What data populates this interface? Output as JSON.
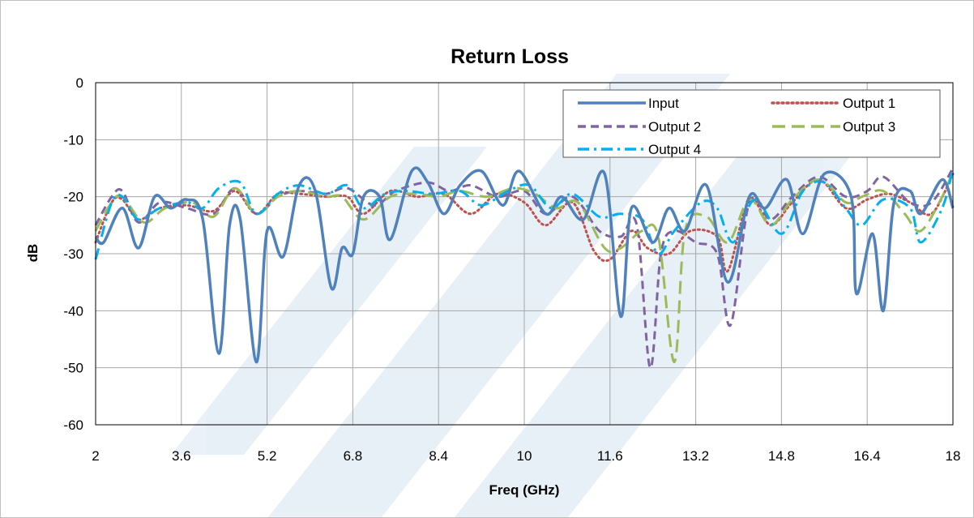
{
  "chart_data": {
    "type": "line",
    "title": "Return Loss",
    "xlabel": "Freq (GHz)",
    "ylabel": "dB",
    "xlim": [
      2,
      18
    ],
    "ylim": [
      -60,
      0
    ],
    "xticks": [
      "2",
      "3.6",
      "5.2",
      "6.8",
      "8.4",
      "10",
      "11.6",
      "13.2",
      "14.8",
      "16.4",
      "18"
    ],
    "yticks": [
      "0",
      "-10",
      "-20",
      "-30",
      "-40",
      "-50",
      "-60"
    ],
    "grid": true,
    "legend_position": "top-right",
    "series": [
      {
        "name": "Input",
        "color": "#4f81bd",
        "style": "solid",
        "points": [
          [
            2,
            -27
          ],
          [
            2.15,
            -28
          ],
          [
            2.5,
            -22
          ],
          [
            2.8,
            -29
          ],
          [
            3.1,
            -20
          ],
          [
            3.4,
            -22
          ],
          [
            3.7,
            -20.5
          ],
          [
            4,
            -24
          ],
          [
            4.3,
            -47.5
          ],
          [
            4.5,
            -25
          ],
          [
            4.7,
            -24
          ],
          [
            5.0,
            -49
          ],
          [
            5.2,
            -26
          ],
          [
            5.5,
            -30.5
          ],
          [
            5.8,
            -18
          ],
          [
            6.1,
            -19
          ],
          [
            6.4,
            -36
          ],
          [
            6.6,
            -29
          ],
          [
            6.8,
            -30
          ],
          [
            7.0,
            -20
          ],
          [
            7.3,
            -20
          ],
          [
            7.5,
            -27.5
          ],
          [
            7.9,
            -15.5
          ],
          [
            8.2,
            -17.5
          ],
          [
            8.5,
            -23
          ],
          [
            8.8,
            -18
          ],
          [
            9.2,
            -15.5
          ],
          [
            9.6,
            -21.5
          ],
          [
            9.9,
            -15.5
          ],
          [
            10.4,
            -23
          ],
          [
            10.7,
            -20
          ],
          [
            11.1,
            -24
          ],
          [
            11.5,
            -16
          ],
          [
            11.8,
            -41
          ],
          [
            12.0,
            -22
          ],
          [
            12.4,
            -28
          ],
          [
            12.7,
            -22
          ],
          [
            13.0,
            -26
          ],
          [
            13.4,
            -18
          ],
          [
            13.8,
            -35
          ],
          [
            14.2,
            -20
          ],
          [
            14.5,
            -22
          ],
          [
            14.9,
            -17
          ],
          [
            15.2,
            -26.5
          ],
          [
            15.6,
            -16
          ],
          [
            16.1,
            -20
          ],
          [
            16.2,
            -37
          ],
          [
            16.5,
            -26.5
          ],
          [
            16.7,
            -40
          ],
          [
            16.9,
            -21
          ],
          [
            17.2,
            -19
          ],
          [
            17.4,
            -23
          ],
          [
            17.8,
            -17
          ],
          [
            18,
            -22
          ]
        ]
      },
      {
        "name": "Output 1",
        "color": "#c0504d",
        "style": "dotted",
        "points": [
          [
            2,
            -28
          ],
          [
            2.3,
            -21
          ],
          [
            2.5,
            -20.5
          ],
          [
            2.8,
            -24
          ],
          [
            3.2,
            -22
          ],
          [
            3.7,
            -21.5
          ],
          [
            4.2,
            -22.5
          ],
          [
            4.6,
            -19
          ],
          [
            5.0,
            -23
          ],
          [
            5.4,
            -19.5
          ],
          [
            5.8,
            -19.5
          ],
          [
            6.3,
            -20
          ],
          [
            6.7,
            -20
          ],
          [
            7.0,
            -23
          ],
          [
            7.5,
            -19
          ],
          [
            8.0,
            -20
          ],
          [
            8.5,
            -19.5
          ],
          [
            9.0,
            -23
          ],
          [
            9.5,
            -19.5
          ],
          [
            10.0,
            -21
          ],
          [
            10.4,
            -25
          ],
          [
            10.9,
            -21
          ],
          [
            11.3,
            -29.5
          ],
          [
            11.6,
            -31
          ],
          [
            12.0,
            -26
          ],
          [
            12.3,
            -29
          ],
          [
            12.7,
            -30
          ],
          [
            13.1,
            -26
          ],
          [
            13.6,
            -27
          ],
          [
            13.8,
            -33
          ],
          [
            14.2,
            -20.5
          ],
          [
            14.6,
            -25
          ],
          [
            15.0,
            -21
          ],
          [
            15.5,
            -17
          ],
          [
            16.0,
            -22
          ],
          [
            16.4,
            -20.5
          ],
          [
            16.8,
            -19.5
          ],
          [
            17.2,
            -21
          ],
          [
            17.6,
            -23
          ],
          [
            18,
            -16
          ]
        ]
      },
      {
        "name": "Output 2",
        "color": "#8064a2",
        "style": "dashed",
        "points": [
          [
            2,
            -25
          ],
          [
            2.3,
            -20
          ],
          [
            2.5,
            -19
          ],
          [
            2.8,
            -24.5
          ],
          [
            3.2,
            -21
          ],
          [
            3.7,
            -22
          ],
          [
            4.2,
            -23
          ],
          [
            4.6,
            -18.5
          ],
          [
            5.0,
            -23
          ],
          [
            5.4,
            -20
          ],
          [
            5.8,
            -19
          ],
          [
            6.3,
            -19.5
          ],
          [
            6.7,
            -18.5
          ],
          [
            7.2,
            -21.5
          ],
          [
            7.6,
            -19
          ],
          [
            8.2,
            -17.5
          ],
          [
            8.6,
            -19
          ],
          [
            9.0,
            -18
          ],
          [
            9.5,
            -20
          ],
          [
            10.0,
            -19
          ],
          [
            10.4,
            -23
          ],
          [
            10.9,
            -20
          ],
          [
            11.4,
            -26
          ],
          [
            11.8,
            -27
          ],
          [
            12.1,
            -25
          ],
          [
            12.35,
            -50
          ],
          [
            12.55,
            -30
          ],
          [
            12.8,
            -26
          ],
          [
            13.2,
            -28
          ],
          [
            13.6,
            -30
          ],
          [
            13.85,
            -42.5
          ],
          [
            14.2,
            -21
          ],
          [
            14.6,
            -24
          ],
          [
            15.0,
            -20
          ],
          [
            15.5,
            -16.5
          ],
          [
            16.0,
            -20
          ],
          [
            16.4,
            -19
          ],
          [
            16.7,
            -16.5
          ],
          [
            17.2,
            -21
          ],
          [
            17.6,
            -21
          ],
          [
            18,
            -15
          ]
        ]
      },
      {
        "name": "Output 3",
        "color": "#9bbb59",
        "style": "longdash",
        "points": [
          [
            2,
            -26
          ],
          [
            2.3,
            -21
          ],
          [
            2.5,
            -20
          ],
          [
            2.9,
            -24.5
          ],
          [
            3.3,
            -22
          ],
          [
            3.8,
            -21
          ],
          [
            4.2,
            -23.5
          ],
          [
            4.6,
            -18.5
          ],
          [
            5.0,
            -23
          ],
          [
            5.4,
            -20
          ],
          [
            5.8,
            -19
          ],
          [
            6.3,
            -20
          ],
          [
            6.6,
            -20
          ],
          [
            7.0,
            -24
          ],
          [
            7.5,
            -20
          ],
          [
            8.0,
            -19.5
          ],
          [
            8.4,
            -20
          ],
          [
            8.8,
            -19
          ],
          [
            9.3,
            -20
          ],
          [
            9.8,
            -18.5
          ],
          [
            10.2,
            -19.5
          ],
          [
            10.6,
            -22
          ],
          [
            11.0,
            -21
          ],
          [
            11.5,
            -29
          ],
          [
            11.8,
            -29
          ],
          [
            12.2,
            -26
          ],
          [
            12.5,
            -27
          ],
          [
            12.8,
            -49
          ],
          [
            13.0,
            -26
          ],
          [
            13.4,
            -23.5
          ],
          [
            13.8,
            -28
          ],
          [
            14.2,
            -20.5
          ],
          [
            14.6,
            -25
          ],
          [
            15.0,
            -20.5
          ],
          [
            15.5,
            -17
          ],
          [
            16.0,
            -21
          ],
          [
            16.3,
            -20
          ],
          [
            16.7,
            -19
          ],
          [
            17.1,
            -23
          ],
          [
            17.4,
            -26
          ],
          [
            17.8,
            -20
          ],
          [
            18,
            -15.5
          ]
        ]
      },
      {
        "name": "Output 4",
        "color": "#00b0f0",
        "style": "dashdot",
        "points": [
          [
            2,
            -31
          ],
          [
            2.3,
            -21
          ],
          [
            2.5,
            -20
          ],
          [
            2.8,
            -24
          ],
          [
            3.2,
            -22
          ],
          [
            3.7,
            -21
          ],
          [
            4.0,
            -22
          ],
          [
            4.3,
            -18.5
          ],
          [
            4.7,
            -17.5
          ],
          [
            5.0,
            -23
          ],
          [
            5.4,
            -19.5
          ],
          [
            5.8,
            -18
          ],
          [
            6.3,
            -19.5
          ],
          [
            6.7,
            -18
          ],
          [
            7.0,
            -22
          ],
          [
            7.4,
            -19.5
          ],
          [
            7.8,
            -19
          ],
          [
            8.3,
            -19.5
          ],
          [
            8.8,
            -19
          ],
          [
            9.2,
            -21.5
          ],
          [
            9.7,
            -19
          ],
          [
            10.1,
            -18
          ],
          [
            10.5,
            -22
          ],
          [
            10.9,
            -19.5
          ],
          [
            11.4,
            -23.5
          ],
          [
            11.8,
            -23
          ],
          [
            12.2,
            -24
          ],
          [
            12.5,
            -30
          ],
          [
            12.8,
            -26
          ],
          [
            13.3,
            -21
          ],
          [
            13.6,
            -22
          ],
          [
            13.9,
            -28
          ],
          [
            14.3,
            -20.5
          ],
          [
            14.8,
            -26.5
          ],
          [
            15.2,
            -19
          ],
          [
            15.6,
            -17.5
          ],
          [
            16.0,
            -22
          ],
          [
            16.3,
            -25
          ],
          [
            16.7,
            -20.5
          ],
          [
            17.2,
            -22
          ],
          [
            17.4,
            -28
          ],
          [
            17.8,
            -22
          ],
          [
            18,
            -15
          ]
        ]
      }
    ]
  }
}
